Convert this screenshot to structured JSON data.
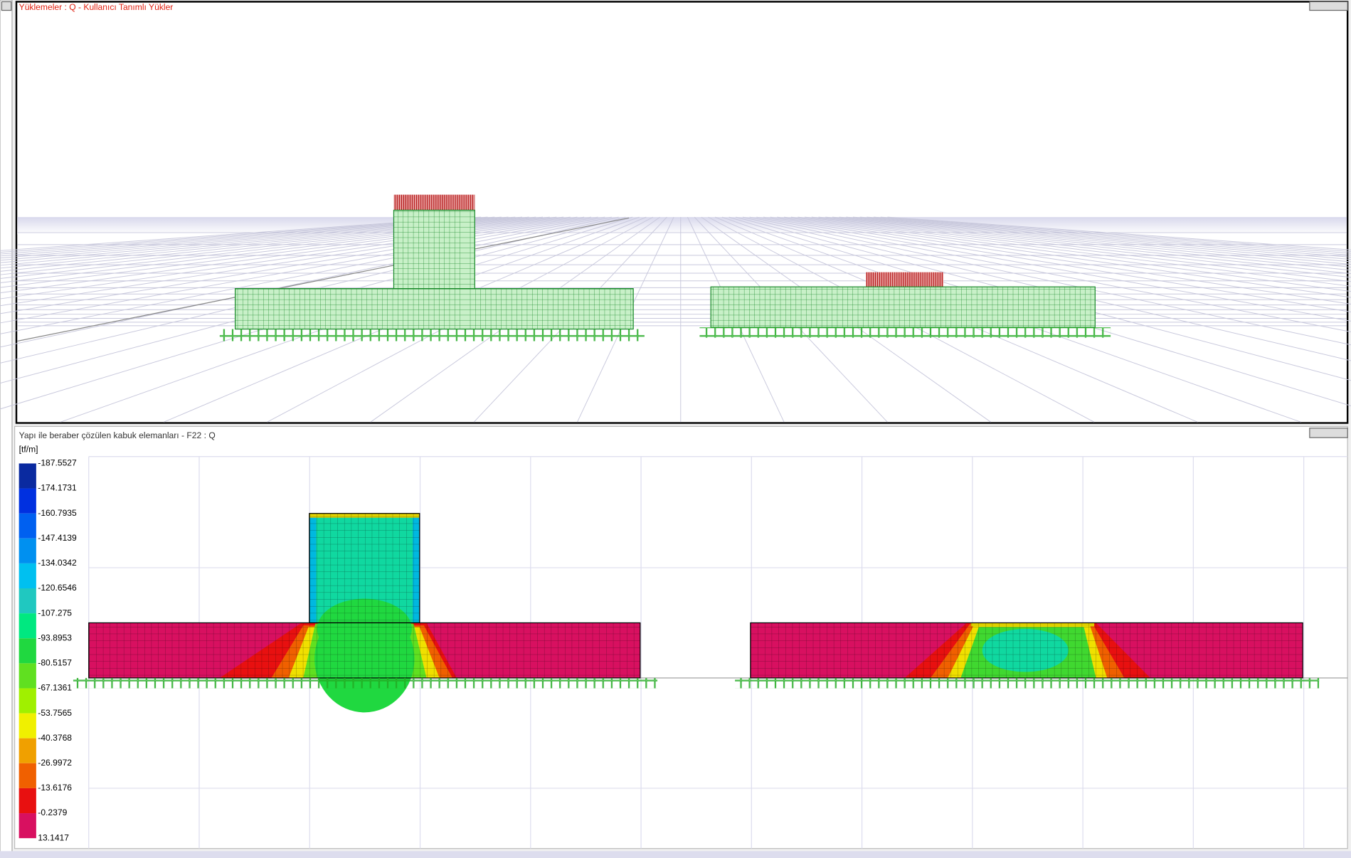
{
  "top_panel": {
    "title": "Yüklemeler : Q - Kullanıcı Tanımlı Yükler"
  },
  "bottom_panel": {
    "title": "Yapı ile beraber çözülen kabuk elemanları - F22 : Q",
    "legend": {
      "unit": "[tf/m]",
      "labels": [
        "-187.5527",
        "-174.1731",
        "-160.7935",
        "-147.4139",
        "-134.0342",
        "-120.6546",
        "-107.275",
        "-93.8953",
        "-80.5157",
        "-67.1361",
        "-53.7565",
        "-40.3768",
        "-26.9972",
        "-13.6176",
        "-0.2379",
        "13.1417"
      ],
      "colors": [
        "#0a2aa0",
        "#0030e0",
        "#0060f0",
        "#0090f0",
        "#00c0f0",
        "#20c8c0",
        "#00e880",
        "#20d840",
        "#60e020",
        "#a0f000",
        "#f0f000",
        "#f0a000",
        "#f06000",
        "#e81010",
        "#d81060"
      ]
    }
  }
}
